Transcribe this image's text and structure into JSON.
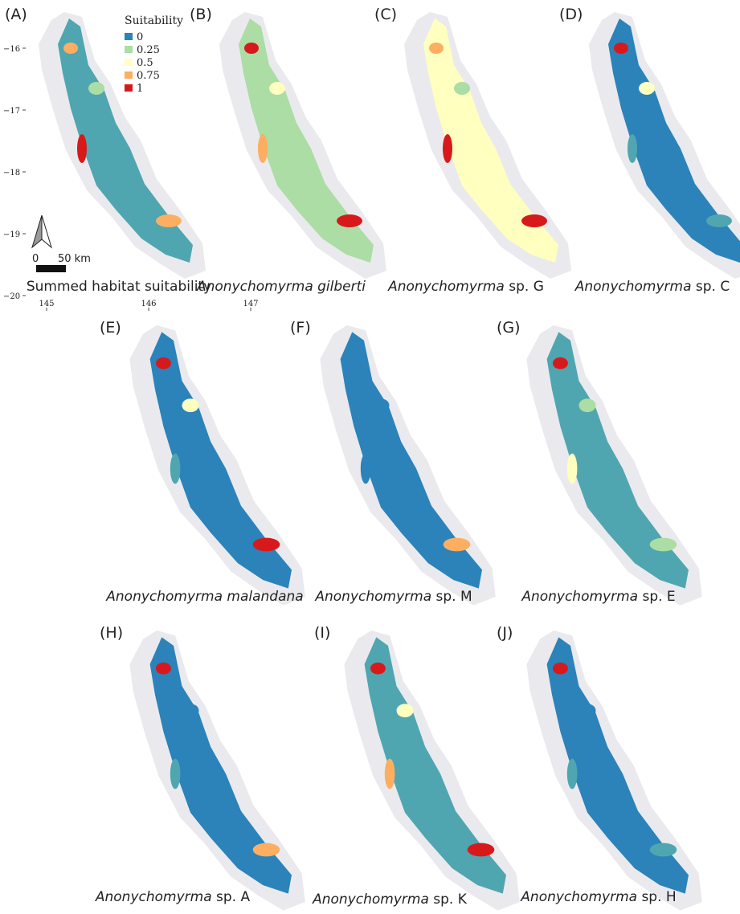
{
  "legend": {
    "title": "Suitability",
    "items": [
      {
        "label": "0",
        "color": "#2b83ba"
      },
      {
        "label": "0.25",
        "color": "#abdda4"
      },
      {
        "label": "0.5",
        "color": "#ffffbf"
      },
      {
        "label": "0.75",
        "color": "#fdae61"
      },
      {
        "label": "1",
        "color": "#d7191c"
      }
    ]
  },
  "axes": {
    "lat_ticks": [
      {
        "value": -16,
        "label": "−16"
      },
      {
        "value": -17,
        "label": "−17"
      },
      {
        "value": -18,
        "label": "−18"
      },
      {
        "value": -19,
        "label": "−19"
      },
      {
        "value": -20,
        "label": "−20"
      }
    ],
    "lon_ticks": [
      145,
      146,
      147
    ]
  },
  "scale_bar": {
    "start": "0",
    "end": "50 km"
  },
  "panels": [
    {
      "label": "(A)",
      "plain": "Summed habitat suitability"
    },
    {
      "label": "(B)",
      "italic": "Anonychomyrma gilberti"
    },
    {
      "label": "(C)",
      "italic": "Anonychomyrma",
      "plain": "sp. G"
    },
    {
      "label": "(D)",
      "italic": "Anonychomyrma",
      "plain": "sp. C"
    },
    {
      "label": "(E)",
      "italic": "Anonychomyrma malandana"
    },
    {
      "label": "(F)",
      "italic": "Anonychomyrma",
      "plain": "sp. M"
    },
    {
      "label": "(G)",
      "italic": "Anonychomyrma",
      "plain": "sp. E"
    },
    {
      "label": "(H)",
      "italic": "Anonychomyrma",
      "plain": "sp. A"
    },
    {
      "label": "(I)",
      "italic": "Anonychomyrma",
      "plain": "sp. K"
    },
    {
      "label": "(J)",
      "italic": "Anonychomyrma",
      "plain": "sp. H"
    }
  ]
}
